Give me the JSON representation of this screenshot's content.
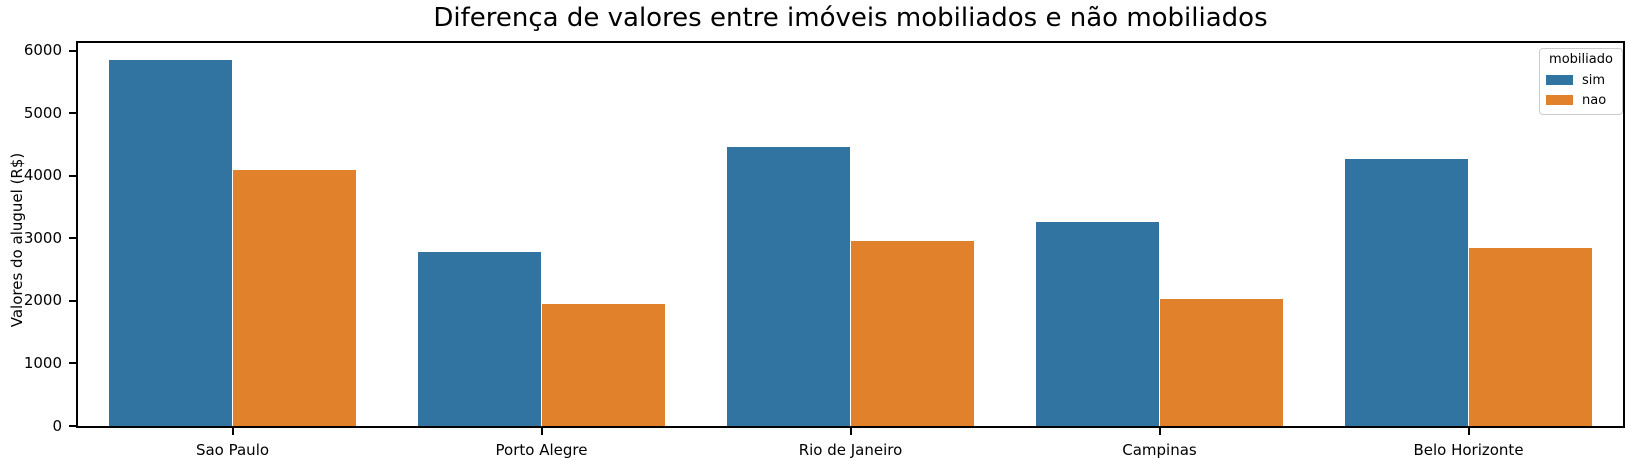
{
  "title": "Diferença de valores entre imóveis mobiliados e não mobiliados",
  "chart_data": {
    "type": "bar",
    "title": "Diferença de valores entre imóveis mobiliados e não mobiliados",
    "categories": [
      "Sao Paulo",
      "Porto Alegre",
      "Rio de Janeiro",
      "Campinas",
      "Belo Horizonte"
    ],
    "series": [
      {
        "name": "sim",
        "color": "#3274a1",
        "values": [
          5850,
          2790,
          4470,
          3270,
          4270
        ]
      },
      {
        "name": "nao",
        "color": "#e1812c",
        "values": [
          4100,
          1950,
          2960,
          2030,
          2850
        ]
      }
    ],
    "xlabel": "",
    "ylabel": "Valores do aluguel (R$)",
    "ylim": [
      0,
      6125
    ],
    "yticks": [
      0,
      1000,
      2000,
      3000,
      4000,
      5000,
      6000
    ],
    "grid": false,
    "legend_title": "mobiliado",
    "legend_position": "upper right",
    "bar_group_fraction": 0.8,
    "axis_color": "#000000",
    "background_color": "#ffffff"
  },
  "legend": {
    "title": "mobiliado",
    "items": [
      {
        "label": "sim",
        "color": "#3274a1"
      },
      {
        "label": "nao",
        "color": "#e1812c"
      }
    ]
  }
}
